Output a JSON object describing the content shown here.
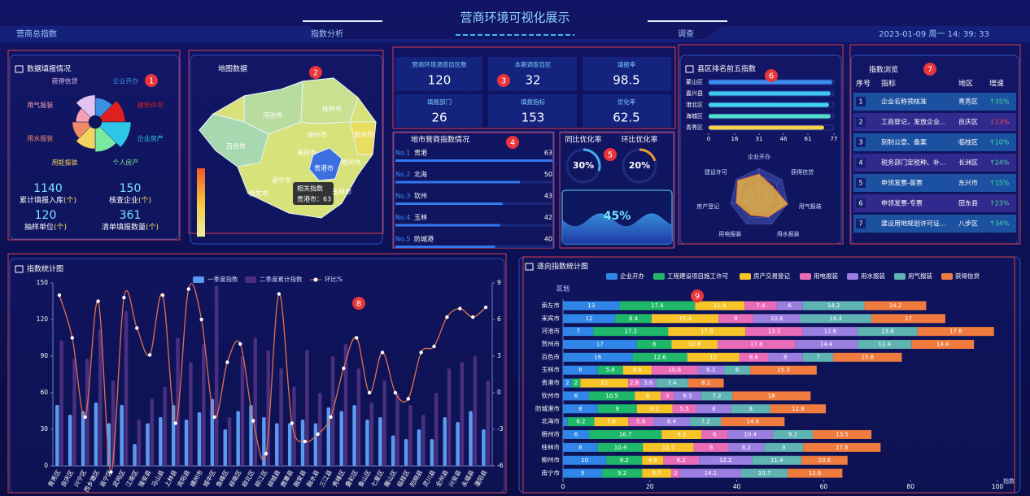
{
  "header": {
    "title": "营商环境可视化展示",
    "nav": [
      "营商总指数",
      "指数分析",
      "调查"
    ],
    "datetime": "2023-01-09 周一 14: 39: 33"
  },
  "markers": [
    "1",
    "2",
    "3",
    "4",
    "5",
    "6",
    "7",
    "8",
    "9"
  ],
  "fill_report": {
    "stats": [
      {
        "value": 1140,
        "label": "累计填报入库",
        "unit": "(个)"
      },
      {
        "value": 150,
        "label": "核查企业",
        "unit": "(个)"
      },
      {
        "value": 120,
        "label": "抽样单位",
        "unit": "(个)"
      },
      {
        "value": 361,
        "label": "清单填报数量",
        "unit": "(个)"
      }
    ]
  },
  "map": {
    "title": "地图数据",
    "cities": [
      "桂林市",
      "河池市",
      "柳州市",
      "百色市",
      "贺州市",
      "来宾市",
      "梧州市",
      "贵港市",
      "南宁市",
      "崇左市",
      "玉林市"
    ],
    "tooltip": {
      "title": "相关指数",
      "text": "贵港市：63"
    }
  },
  "survey_stats": [
    {
      "label": "营商环境调查目区数",
      "value": 120
    },
    {
      "label": "本期调查目区",
      "value": 32
    },
    {
      "label": "填报率",
      "value": 98.5
    },
    {
      "label": "填报部门",
      "value": 26
    },
    {
      "label": "填报指标",
      "value": 153
    },
    {
      "label": "优化率",
      "value": 62.5
    }
  ],
  "city_ranking": {
    "title": "地市营商指数情况",
    "rows": [
      {
        "rank": "No.1",
        "city": "贵港",
        "value": 63
      },
      {
        "rank": "No.2",
        "city": "北海",
        "value": 50
      },
      {
        "rank": "No.3",
        "city": "钦州",
        "value": 43
      },
      {
        "rank": "No.4",
        "city": "玉林",
        "value": 42
      },
      {
        "rank": "No.5",
        "city": "防城港",
        "value": 40
      }
    ]
  },
  "rates": {
    "items": [
      {
        "label": "同比优化率",
        "value": 30,
        "value_label": "30%"
      },
      {
        "label": "环比优化率",
        "value": 20,
        "value_label": "20%"
      }
    ],
    "wave": {
      "value": 45,
      "value_label": "45%"
    }
  },
  "index_table": {
    "title": "指数浏览",
    "headers": [
      "序号",
      "指标",
      "地区",
      "增速"
    ],
    "rows": [
      [
        "1",
        "企业名称预核准",
        "青秀区",
        "↑35%"
      ],
      [
        "2",
        "工商登记，发放企业...",
        "良庆区",
        "↓13%"
      ],
      [
        "3",
        "刻制公章、备案",
        "临桂区",
        "↑10%"
      ],
      [
        "4",
        "税务部门定税种、补...",
        "长洲区",
        "↑24%"
      ],
      [
        "5",
        "申领发票-普票",
        "东兴市",
        "↑15%"
      ],
      [
        "6",
        "申领发票-专票",
        "田东县",
        "↑23%"
      ],
      [
        "7",
        "建设用地规划许可证...",
        "八步区",
        "↑34%"
      ]
    ]
  },
  "chart_data": [
    {
      "type": "rose",
      "title": "数据填报情况",
      "categories": [
        "企业开办",
        "建筑许可",
        "企业房产",
        "个人房产",
        "用能报装",
        "用水报装",
        "用气报装",
        "获得信贷"
      ],
      "values": [
        30,
        40,
        50,
        40,
        35,
        28,
        22,
        35
      ],
      "colors": [
        "#3b8fe0",
        "#e02020",
        "#2ec6e8",
        "#7be8a0",
        "#f4d35e",
        "#f08a6a",
        "#f4a0b0",
        "#e3c2f0"
      ]
    },
    {
      "type": "hbar",
      "title": "县区排名前五指数",
      "categories": [
        "蒙山区",
        "嘉兴县",
        "港北区",
        "海城区",
        "青秀区"
      ],
      "values": [
        76,
        75,
        74,
        75,
        71
      ],
      "colors": [
        "#3c8cf0",
        "#3fc8f0",
        "#3fd8f0",
        "#52e0c8",
        "#f6d24a"
      ],
      "xlim": [
        0,
        77
      ],
      "xticks": [
        0,
        16,
        31,
        46,
        61,
        77
      ]
    },
    {
      "type": "radar",
      "categories": [
        "企业开办",
        "获得信贷",
        "用气报装",
        "用水报装",
        "用电报装",
        "房产登记",
        "建设许可"
      ],
      "values": [
        60,
        45,
        75,
        55,
        50,
        60,
        70
      ],
      "color": "#f4b942"
    },
    {
      "type": "bar_line",
      "title": "指数统计图",
      "categories": [
        "青秀区",
        "良庆区",
        "兴宁区",
        "西乡塘区",
        "邕宁区",
        "武鸣区",
        "江南区",
        "隆安县",
        "马山县",
        "上林县",
        "宾阳县",
        "横州市",
        "城中区",
        "鱼峰区",
        "柳南区",
        "柳北区",
        "柳江区",
        "柳城县",
        "鹿寨县",
        "融安县",
        "融水县",
        "三江县",
        "秀峰区",
        "叠彩区",
        "象山区",
        "七星区",
        "雁山区",
        "临桂区",
        "阳朔县",
        "灵川县",
        "全州县",
        "兴安县",
        "永福县",
        "灌阳县"
      ],
      "series": [
        {
          "name": "一季度指数",
          "color": "#5b9bef",
          "values": [
            50,
            42,
            45,
            52,
            35,
            50,
            18,
            35,
            40,
            50,
            38,
            44,
            55,
            30,
            45,
            50,
            40,
            35,
            35,
            38,
            35,
            48,
            45,
            50,
            38,
            40,
            25,
            22,
            30,
            22,
            40,
            36,
            45,
            30
          ]
        },
        {
          "name": "二季度累计指数",
          "color": "#4a2f7e",
          "values": [
            103,
            88,
            88,
            112,
            70,
            127,
            38,
            55,
            65,
            105,
            85,
            100,
            148,
            40,
            90,
            105,
            95,
            80,
            65,
            95,
            60,
            90,
            100,
            80,
            52,
            70,
            60,
            50,
            42,
            60,
            80,
            85,
            90,
            70
          ]
        },
        {
          "name": "环比%",
          "color": "#e07050",
          "type": "line",
          "axis": "y2",
          "values": [
            8,
            4.5,
            -2,
            7.5,
            -6.5,
            7.8,
            5.3,
            3.1,
            8,
            -2.5,
            8.5,
            6,
            -2,
            2.5,
            4,
            -2.3,
            -5,
            8.1,
            -2.5,
            -4,
            -3.4,
            -2,
            2,
            4.5,
            0,
            3.3,
            0,
            -0.5,
            3.3,
            3.8,
            6.2,
            6.9,
            6.2,
            7
          ]
        }
      ],
      "ylim": [
        0,
        150
      ],
      "yticks": [
        0,
        30,
        60,
        90,
        120,
        150
      ],
      "y2lim": [
        -6,
        9
      ],
      "y2ticks": [
        -6,
        -3,
        0,
        3,
        6,
        9
      ],
      "grid": false
    },
    {
      "type": "stacked_hbar",
      "title": "逐向指数统计图",
      "ylabel": "区划",
      "xlabel": "指数",
      "categories": [
        "崇左市",
        "来宾市",
        "河池市",
        "贺州市",
        "百色市",
        "玉林市",
        "贵港市",
        "钦州市",
        "防城港市",
        "北海市",
        "梧州市",
        "桂林市",
        "柳州市",
        "南宁市"
      ],
      "series": [
        {
          "name": "企业开办",
          "color": "#2f86e8",
          "values": [
            13,
            12,
            7,
            17,
            16,
            8,
            2,
            6,
            8,
            1,
            6,
            8,
            10,
            9
          ]
        },
        {
          "name": "工程建设项目施工许可",
          "color": "#1fb86a",
          "values": [
            17.4,
            8.4,
            17.2,
            8,
            12.6,
            5.8,
            2,
            10.5,
            9,
            6.2,
            16.7,
            10.4,
            8.2,
            9.2
          ]
        },
        {
          "name": "房产交易登记",
          "color": "#f6c429",
          "values": [
            11.4,
            15.4,
            17.8,
            10.6,
            12,
            6.6,
            11,
            6,
            8.2,
            7.8,
            9.2,
            11.7,
            4.9,
            6.7
          ]
        },
        {
          "name": "用电报装",
          "color": "#e86bb8",
          "values": [
            7.4,
            8,
            13.2,
            17.8,
            6.6,
            10.6,
            2.8,
            3,
            5.5,
            5.8,
            6,
            8,
            8.2,
            2
          ]
        },
        {
          "name": "用水报装",
          "color": "#9b7fe0",
          "values": [
            6,
            10.8,
            12.6,
            14.4,
            8,
            6.1,
            3.6,
            6.3,
            8,
            8.4,
            10.4,
            8.2,
            12.2,
            14.1
          ]
        },
        {
          "name": "用气报装",
          "color": "#5fb3b3",
          "values": [
            14.2,
            16.4,
            13.8,
            12.4,
            7,
            6,
            7.4,
            7.2,
            9,
            7.2,
            9.2,
            9,
            11.4,
            10.7
          ]
        },
        {
          "name": "获得信贷",
          "color": "#f07b3f",
          "values": [
            14.2,
            17,
            17.6,
            14.4,
            15.8,
            15.3,
            8.2,
            18,
            12.8,
            14.6,
            13.5,
            17.8,
            10.6,
            12.6
          ]
        }
      ],
      "xlim": [
        0,
        100
      ],
      "xticks": [
        0,
        20,
        40,
        60,
        80,
        100
      ]
    }
  ]
}
